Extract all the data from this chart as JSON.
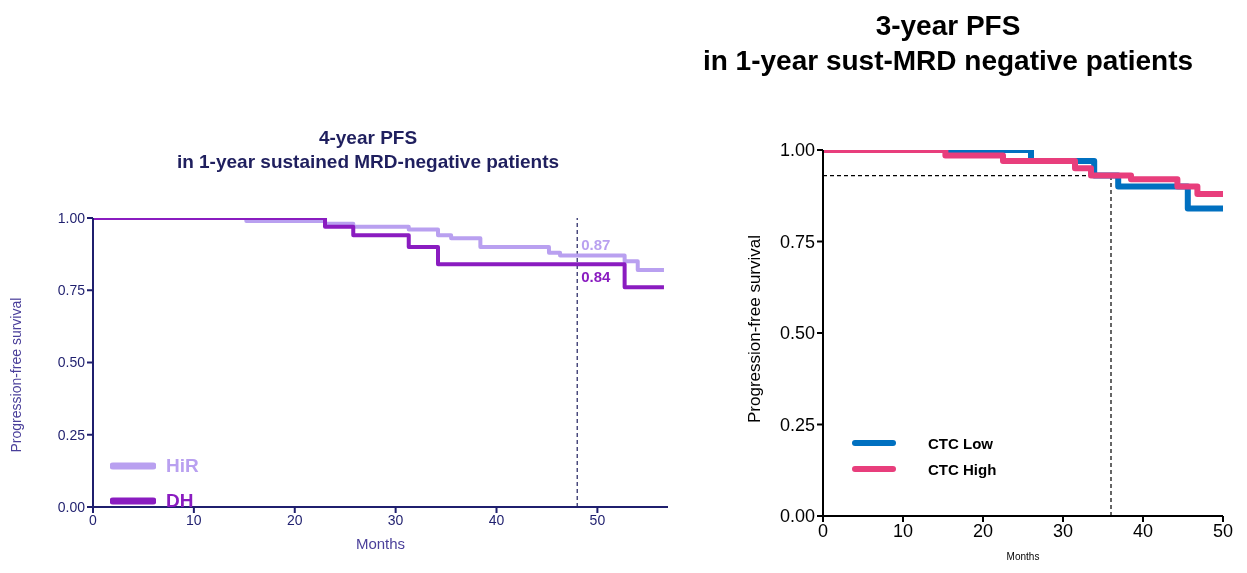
{
  "chart_data": [
    {
      "type": "step",
      "title": "4-year PFS\nin 1-year sustained MRD-negative patients",
      "xlabel": "Months",
      "ylabel": "Progression-free survival",
      "series": [
        {
          "name": "HiR",
          "color": "#b9a0f0",
          "x": [
            0,
            15.2,
            23,
            25.8,
            31.3,
            34.2,
            35.5,
            38.4,
            45.2,
            46.3,
            52.7,
            54,
            56.6
          ],
          "values": [
            1,
            0.99,
            0.98,
            0.97,
            0.96,
            0.94,
            0.93,
            0.9,
            0.88,
            0.87,
            0.85,
            0.82,
            0.82
          ]
        },
        {
          "name": "DH",
          "color": "#8a1cc0",
          "x": [
            0,
            23,
            25.8,
            31.3,
            34.2,
            52.7,
            56.6
          ],
          "values": [
            1,
            0.97,
            0.94,
            0.9,
            0.84,
            0.76,
            0.76
          ]
        }
      ],
      "xlim": [
        0,
        57
      ],
      "xticks": [
        0,
        10,
        20,
        30,
        40,
        50
      ],
      "ylim": [
        0,
        1
      ],
      "yticks": [
        {
          "value": 0,
          "label": "0.00"
        },
        {
          "value": 0.25,
          "label": "0.25"
        },
        {
          "value": 0.5,
          "label": "0.50"
        },
        {
          "value": 0.75,
          "label": "0.75"
        },
        {
          "value": 1,
          "label": "1.00"
        }
      ],
      "ref_lines": [
        {
          "axis": "x",
          "value": 48,
          "label": null,
          "color": "#1f1f5e",
          "line_style": "dashed"
        }
      ],
      "annotations": [
        {
          "text": "0.87",
          "x": 48,
          "y": 0.87
        },
        {
          "text": "0.84",
          "x": 48,
          "y": 0.84
        }
      ],
      "legend": "bottom left",
      "marker": "none",
      "line_style": "solid"
    },
    {
      "type": "step",
      "title": "3-year PFS\nin 1-year sust-MRD negative patients",
      "xlabel": "Months",
      "ylabel": "Progression-free survival",
      "series": [
        {
          "name": "CTC Low",
          "color": "#0070c0",
          "x": [
            0,
            26,
            33.9,
            36.9,
            45.6,
            50
          ],
          "values": [
            1,
            0.97,
            0.93,
            0.9,
            0.84,
            0.84
          ]
        },
        {
          "name": "CTC High",
          "color": "#e83e7c",
          "x": [
            0,
            15.3,
            22.5,
            31.5,
            33.5,
            36.9,
            38.5,
            44.3,
            46.8,
            50
          ],
          "values": [
            1,
            0.985,
            0.97,
            0.95,
            0.93,
            0.93,
            0.92,
            0.9,
            0.88,
            0.88
          ]
        }
      ],
      "xlim": [
        0,
        50
      ],
      "xticks": [
        0,
        10,
        20,
        30,
        40,
        50
      ],
      "ylim": [
        0,
        1
      ],
      "yticks": [
        {
          "value": 0,
          "label": "0.00"
        },
        {
          "value": 0.25,
          "label": "0.25"
        },
        {
          "value": 0.5,
          "label": "0.50"
        },
        {
          "value": 0.75,
          "label": "0.75"
        },
        {
          "value": 1,
          "label": "1.00"
        }
      ],
      "ref_lines": [
        {
          "axis": "y",
          "value": 0.93,
          "label": null,
          "color": "#000000",
          "line_style": "dashed"
        },
        {
          "axis": "x",
          "value": 36,
          "label": null,
          "color": "#000000",
          "line_style": "dashed"
        }
      ],
      "legend": "bottom left",
      "marker": "none",
      "line_style": "solid"
    }
  ]
}
